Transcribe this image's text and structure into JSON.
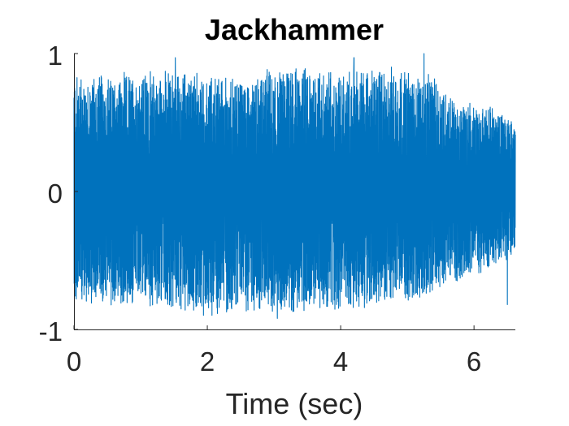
{
  "chart_data": {
    "type": "line",
    "title": "Jackhammer",
    "xlabel": "Time (sec)",
    "ylabel": "",
    "xlim": [
      0,
      6.62
    ],
    "ylim": [
      -1,
      1
    ],
    "xticks": [
      0,
      2,
      4,
      6
    ],
    "yticks": [
      -1,
      0,
      1
    ],
    "xtick_labels": [
      "0",
      "2",
      "4",
      "6"
    ],
    "ytick_labels": [
      "-1",
      "0",
      "1"
    ],
    "grid": false,
    "legend": "none",
    "line_color": "#0072BD",
    "series": [
      {
        "envelope": {
          "x": [
            0,
            0.5,
            1.0,
            1.5,
            2.0,
            2.5,
            3.0,
            3.5,
            4.0,
            4.5,
            5.0,
            5.4,
            5.7,
            6.0,
            6.3,
            6.62
          ],
          "upper": [
            0.85,
            0.82,
            0.84,
            0.85,
            0.83,
            0.8,
            0.88,
            0.87,
            0.85,
            0.88,
            0.87,
            0.8,
            0.65,
            0.62,
            0.6,
            0.52
          ],
          "lower": [
            -0.78,
            -0.82,
            -0.8,
            -0.84,
            -0.88,
            -0.85,
            -0.84,
            -0.86,
            -0.87,
            -0.8,
            -0.78,
            -0.76,
            -0.66,
            -0.58,
            -0.55,
            -0.45
          ]
        },
        "peaks": [
          {
            "x": 1.52,
            "y": 0.97
          },
          {
            "x": 4.2,
            "y": 0.97
          },
          {
            "x": 5.25,
            "y": 1.0
          },
          {
            "x": 3.05,
            "y": -0.92
          },
          {
            "x": 6.5,
            "y": -0.82
          }
        ]
      }
    ]
  }
}
